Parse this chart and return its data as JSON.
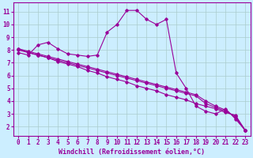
{
  "xlabel": "Windchill (Refroidissement éolien,°C)",
  "ylabel": "",
  "bg_color": "#cceeff",
  "line_color": "#990099",
  "grid_color": "#aacccc",
  "x_ticks": [
    0,
    1,
    2,
    3,
    4,
    5,
    6,
    7,
    8,
    9,
    10,
    11,
    12,
    13,
    14,
    15,
    16,
    17,
    18,
    19,
    20,
    21,
    22,
    23
  ],
  "y_ticks": [
    2,
    3,
    4,
    5,
    6,
    7,
    8,
    9,
    10,
    11
  ],
  "xlim": [
    -0.5,
    23.5
  ],
  "ylim": [
    1.3,
    11.7
  ],
  "lines": [
    {
      "x": [
        0,
        1,
        2,
        3,
        4,
        5,
        6,
        7,
        8,
        9,
        10,
        11,
        12,
        13,
        14,
        15,
        16,
        17,
        18,
        19,
        20,
        21,
        22,
        23
      ],
      "y": [
        7.8,
        7.6,
        8.4,
        8.6,
        8.1,
        7.7,
        7.6,
        7.5,
        7.6,
        9.4,
        10.0,
        11.1,
        11.1,
        10.4,
        10.0,
        10.4,
        6.2,
        5.0,
        3.6,
        3.2,
        3.0,
        3.4,
        2.6,
        1.7
      ]
    },
    {
      "x": [
        0,
        1,
        2,
        3,
        4,
        5,
        6,
        7,
        8,
        9,
        10,
        11,
        12,
        13,
        14,
        15,
        16,
        17,
        18,
        19,
        20,
        21,
        22,
        23
      ],
      "y": [
        8.1,
        7.8,
        7.6,
        7.4,
        7.1,
        6.9,
        6.7,
        6.4,
        6.2,
        5.9,
        5.7,
        5.5,
        5.2,
        5.0,
        4.8,
        4.5,
        4.3,
        4.1,
        3.8,
        3.6,
        3.4,
        3.1,
        2.9,
        1.7
      ]
    },
    {
      "x": [
        0,
        1,
        2,
        3,
        4,
        5,
        6,
        7,
        8,
        9,
        10,
        11,
        12,
        13,
        14,
        15,
        16,
        17,
        18,
        19,
        20,
        21,
        22,
        23
      ],
      "y": [
        8.1,
        7.9,
        7.7,
        7.5,
        7.3,
        7.1,
        6.9,
        6.7,
        6.5,
        6.3,
        6.1,
        5.9,
        5.7,
        5.5,
        5.3,
        5.1,
        4.9,
        4.7,
        4.5,
        4.0,
        3.6,
        3.3,
        2.7,
        1.7
      ]
    },
    {
      "x": [
        0,
        1,
        2,
        3,
        4,
        5,
        6,
        7,
        8,
        9,
        10,
        11,
        12,
        13,
        14,
        15,
        16,
        17,
        18,
        19,
        20,
        21,
        22,
        23
      ],
      "y": [
        8.0,
        7.8,
        7.6,
        7.4,
        7.2,
        7.0,
        6.8,
        6.6,
        6.4,
        6.2,
        6.0,
        5.8,
        5.6,
        5.4,
        5.2,
        5.0,
        4.8,
        4.6,
        4.4,
        3.8,
        3.5,
        3.2,
        2.8,
        1.7
      ]
    }
  ],
  "tick_fontsize": 5.5,
  "label_fontsize": 6.0
}
